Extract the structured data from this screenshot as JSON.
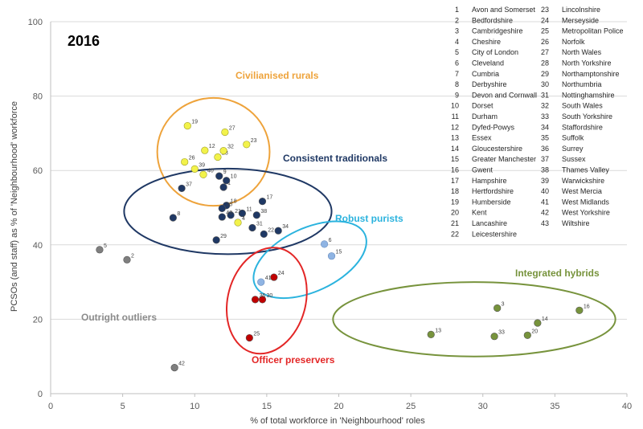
{
  "chart_data": {
    "type": "scatter",
    "title": "2016",
    "xlabel": "% of total workforce in 'Neighbourhood' roles",
    "ylabel": "PCSOs (and staff) as % of 'Neighbourhood' workforce",
    "xlim": [
      0,
      40
    ],
    "ylim": [
      0,
      100
    ],
    "xticks": [
      0,
      5,
      10,
      15,
      20,
      25,
      30,
      35,
      40
    ],
    "yticks": [
      0,
      20,
      40,
      60,
      80,
      100
    ],
    "grid": "horizontal",
    "groups": [
      {
        "name": "Civilianised rurals",
        "color": "#EEA33B",
        "fill": "#F2F24A"
      },
      {
        "name": "Consistent traditionals",
        "color": "#1F3864",
        "fill": "#1F3864"
      },
      {
        "name": "Robust purists",
        "color": "#2BB3DE",
        "fill": "#8FB4E3"
      },
      {
        "name": "Integrated hybrids",
        "color": "#77933C",
        "fill": "#77933C"
      },
      {
        "name": "Officer preservers",
        "color": "#E32626",
        "fill": "#C00000"
      },
      {
        "name": "Outright outliers",
        "color": "#8C8C8C",
        "fill": "#7F7F7F"
      }
    ],
    "points": [
      {
        "id": "1",
        "x": 12.0,
        "y": 55.5,
        "group": 1
      },
      {
        "id": "2",
        "x": 5.3,
        "y": 36.0,
        "group": 5
      },
      {
        "id": "3",
        "x": 31.0,
        "y": 23.0,
        "group": 3
      },
      {
        "id": "4",
        "x": 13.0,
        "y": 46.0,
        "group": 0
      },
      {
        "id": "5",
        "x": 3.4,
        "y": 38.7,
        "group": 5
      },
      {
        "id": "6",
        "x": 19.0,
        "y": 40.2,
        "group": 2
      },
      {
        "id": "8",
        "x": 8.5,
        "y": 47.3,
        "group": 1
      },
      {
        "id": "9",
        "x": 11.7,
        "y": 58.5,
        "group": 1
      },
      {
        "id": "10",
        "x": 12.2,
        "y": 57.3,
        "group": 1
      },
      {
        "id": "11",
        "x": 13.3,
        "y": 48.5,
        "group": 1
      },
      {
        "id": "12",
        "x": 10.7,
        "y": 65.4,
        "group": 0
      },
      {
        "id": "13",
        "x": 26.4,
        "y": 15.9,
        "group": 3
      },
      {
        "id": "14",
        "x": 33.8,
        "y": 19.0,
        "group": 3
      },
      {
        "id": "15",
        "x": 19.5,
        "y": 37.0,
        "group": 2
      },
      {
        "id": "16",
        "x": 36.7,
        "y": 22.4,
        "group": 3
      },
      {
        "id": "17",
        "x": 14.7,
        "y": 51.7,
        "group": 1
      },
      {
        "id": "18",
        "x": 12.2,
        "y": 50.6,
        "group": 1
      },
      {
        "id": "19",
        "x": 9.5,
        "y": 72.0,
        "group": 0
      },
      {
        "id": "20",
        "x": 33.1,
        "y": 15.7,
        "group": 3
      },
      {
        "id": "21",
        "x": 12.5,
        "y": 48.0,
        "group": 1
      },
      {
        "id": "22",
        "x": 14.8,
        "y": 42.9,
        "group": 1
      },
      {
        "id": "23",
        "x": 13.6,
        "y": 67.0,
        "group": 0
      },
      {
        "id": "24",
        "x": 15.5,
        "y": 31.3,
        "group": 4
      },
      {
        "id": "25",
        "x": 13.8,
        "y": 15.0,
        "group": 4
      },
      {
        "id": "26",
        "x": 9.3,
        "y": 62.3,
        "group": 0
      },
      {
        "id": "27",
        "x": 12.1,
        "y": 70.3,
        "group": 0
      },
      {
        "id": "28",
        "x": 11.6,
        "y": 63.6,
        "group": 0
      },
      {
        "id": "29",
        "x": 11.5,
        "y": 41.3,
        "group": 1
      },
      {
        "id": "30",
        "x": 14.7,
        "y": 25.3,
        "group": 4
      },
      {
        "id": "31",
        "x": 14.0,
        "y": 44.6,
        "group": 1
      },
      {
        "id": "32",
        "x": 12.0,
        "y": 65.3,
        "group": 0
      },
      {
        "id": "33",
        "x": 30.8,
        "y": 15.4,
        "group": 3
      },
      {
        "id": "34",
        "x": 15.8,
        "y": 43.8,
        "group": 1
      },
      {
        "id": "35",
        "x": 11.9,
        "y": 49.8,
        "group": 1
      },
      {
        "id": "36",
        "x": 14.2,
        "y": 25.3,
        "group": 4
      },
      {
        "id": "37",
        "x": 9.1,
        "y": 55.2,
        "group": 1
      },
      {
        "id": "38",
        "x": 14.3,
        "y": 48.0,
        "group": 1
      },
      {
        "id": "39",
        "x": 10.0,
        "y": 60.4,
        "group": 0
      },
      {
        "id": "40",
        "x": 10.6,
        "y": 58.9,
        "group": 0
      },
      {
        "id": "41",
        "x": 14.6,
        "y": 30.0,
        "group": 2
      },
      {
        "id": "42",
        "x": 8.6,
        "y": 7.0,
        "group": 5
      },
      {
        "id": "43",
        "x": 11.9,
        "y": 47.5,
        "group": 1
      }
    ],
    "legend": [
      {
        "num": "1",
        "name": "Avon and Somerset"
      },
      {
        "num": "2",
        "name": "Bedfordshire"
      },
      {
        "num": "3",
        "name": "Cambridgeshire"
      },
      {
        "num": "4",
        "name": "Cheshire"
      },
      {
        "num": "5",
        "name": "City of London"
      },
      {
        "num": "6",
        "name": "Cleveland"
      },
      {
        "num": "7",
        "name": "Cumbria"
      },
      {
        "num": "8",
        "name": "Derbyshire"
      },
      {
        "num": "9",
        "name": "Devon and Cornwall"
      },
      {
        "num": "10",
        "name": "Dorset"
      },
      {
        "num": "11",
        "name": "Durham"
      },
      {
        "num": "12",
        "name": "Dyfed-Powys"
      },
      {
        "num": "13",
        "name": "Essex"
      },
      {
        "num": "14",
        "name": "Gloucestershire"
      },
      {
        "num": "15",
        "name": "Greater Manchester"
      },
      {
        "num": "16",
        "name": "Gwent"
      },
      {
        "num": "17",
        "name": "Hampshire"
      },
      {
        "num": "18",
        "name": "Hertfordshire"
      },
      {
        "num": "19",
        "name": "Humberside"
      },
      {
        "num": "20",
        "name": "Kent"
      },
      {
        "num": "21",
        "name": "Lancashire"
      },
      {
        "num": "22",
        "name": "Leicestershire"
      },
      {
        "num": "23",
        "name": "Lincolnshire"
      },
      {
        "num": "24",
        "name": "Merseyside"
      },
      {
        "num": "25",
        "name": "Metropolitan Police"
      },
      {
        "num": "26",
        "name": "Norfolk"
      },
      {
        "num": "27",
        "name": "North Wales"
      },
      {
        "num": "28",
        "name": "North Yorkshire"
      },
      {
        "num": "29",
        "name": "Northamptonshire"
      },
      {
        "num": "30",
        "name": "Northumbria"
      },
      {
        "num": "31",
        "name": "Nottinghamshire"
      },
      {
        "num": "32",
        "name": "South Wales"
      },
      {
        "num": "33",
        "name": "South Yorkshire"
      },
      {
        "num": "34",
        "name": "Staffordshire"
      },
      {
        "num": "35",
        "name": "Suffolk"
      },
      {
        "num": "36",
        "name": "Surrey"
      },
      {
        "num": "37",
        "name": "Sussex"
      },
      {
        "num": "38",
        "name": "Thames Valley"
      },
      {
        "num": "39",
        "name": "Warwickshire"
      },
      {
        "num": "40",
        "name": "West Mercia"
      },
      {
        "num": "41",
        "name": "West Midlands"
      },
      {
        "num": "42",
        "name": "West Yorkshire"
      },
      {
        "num": "43",
        "name": "Wiltshire"
      }
    ]
  }
}
